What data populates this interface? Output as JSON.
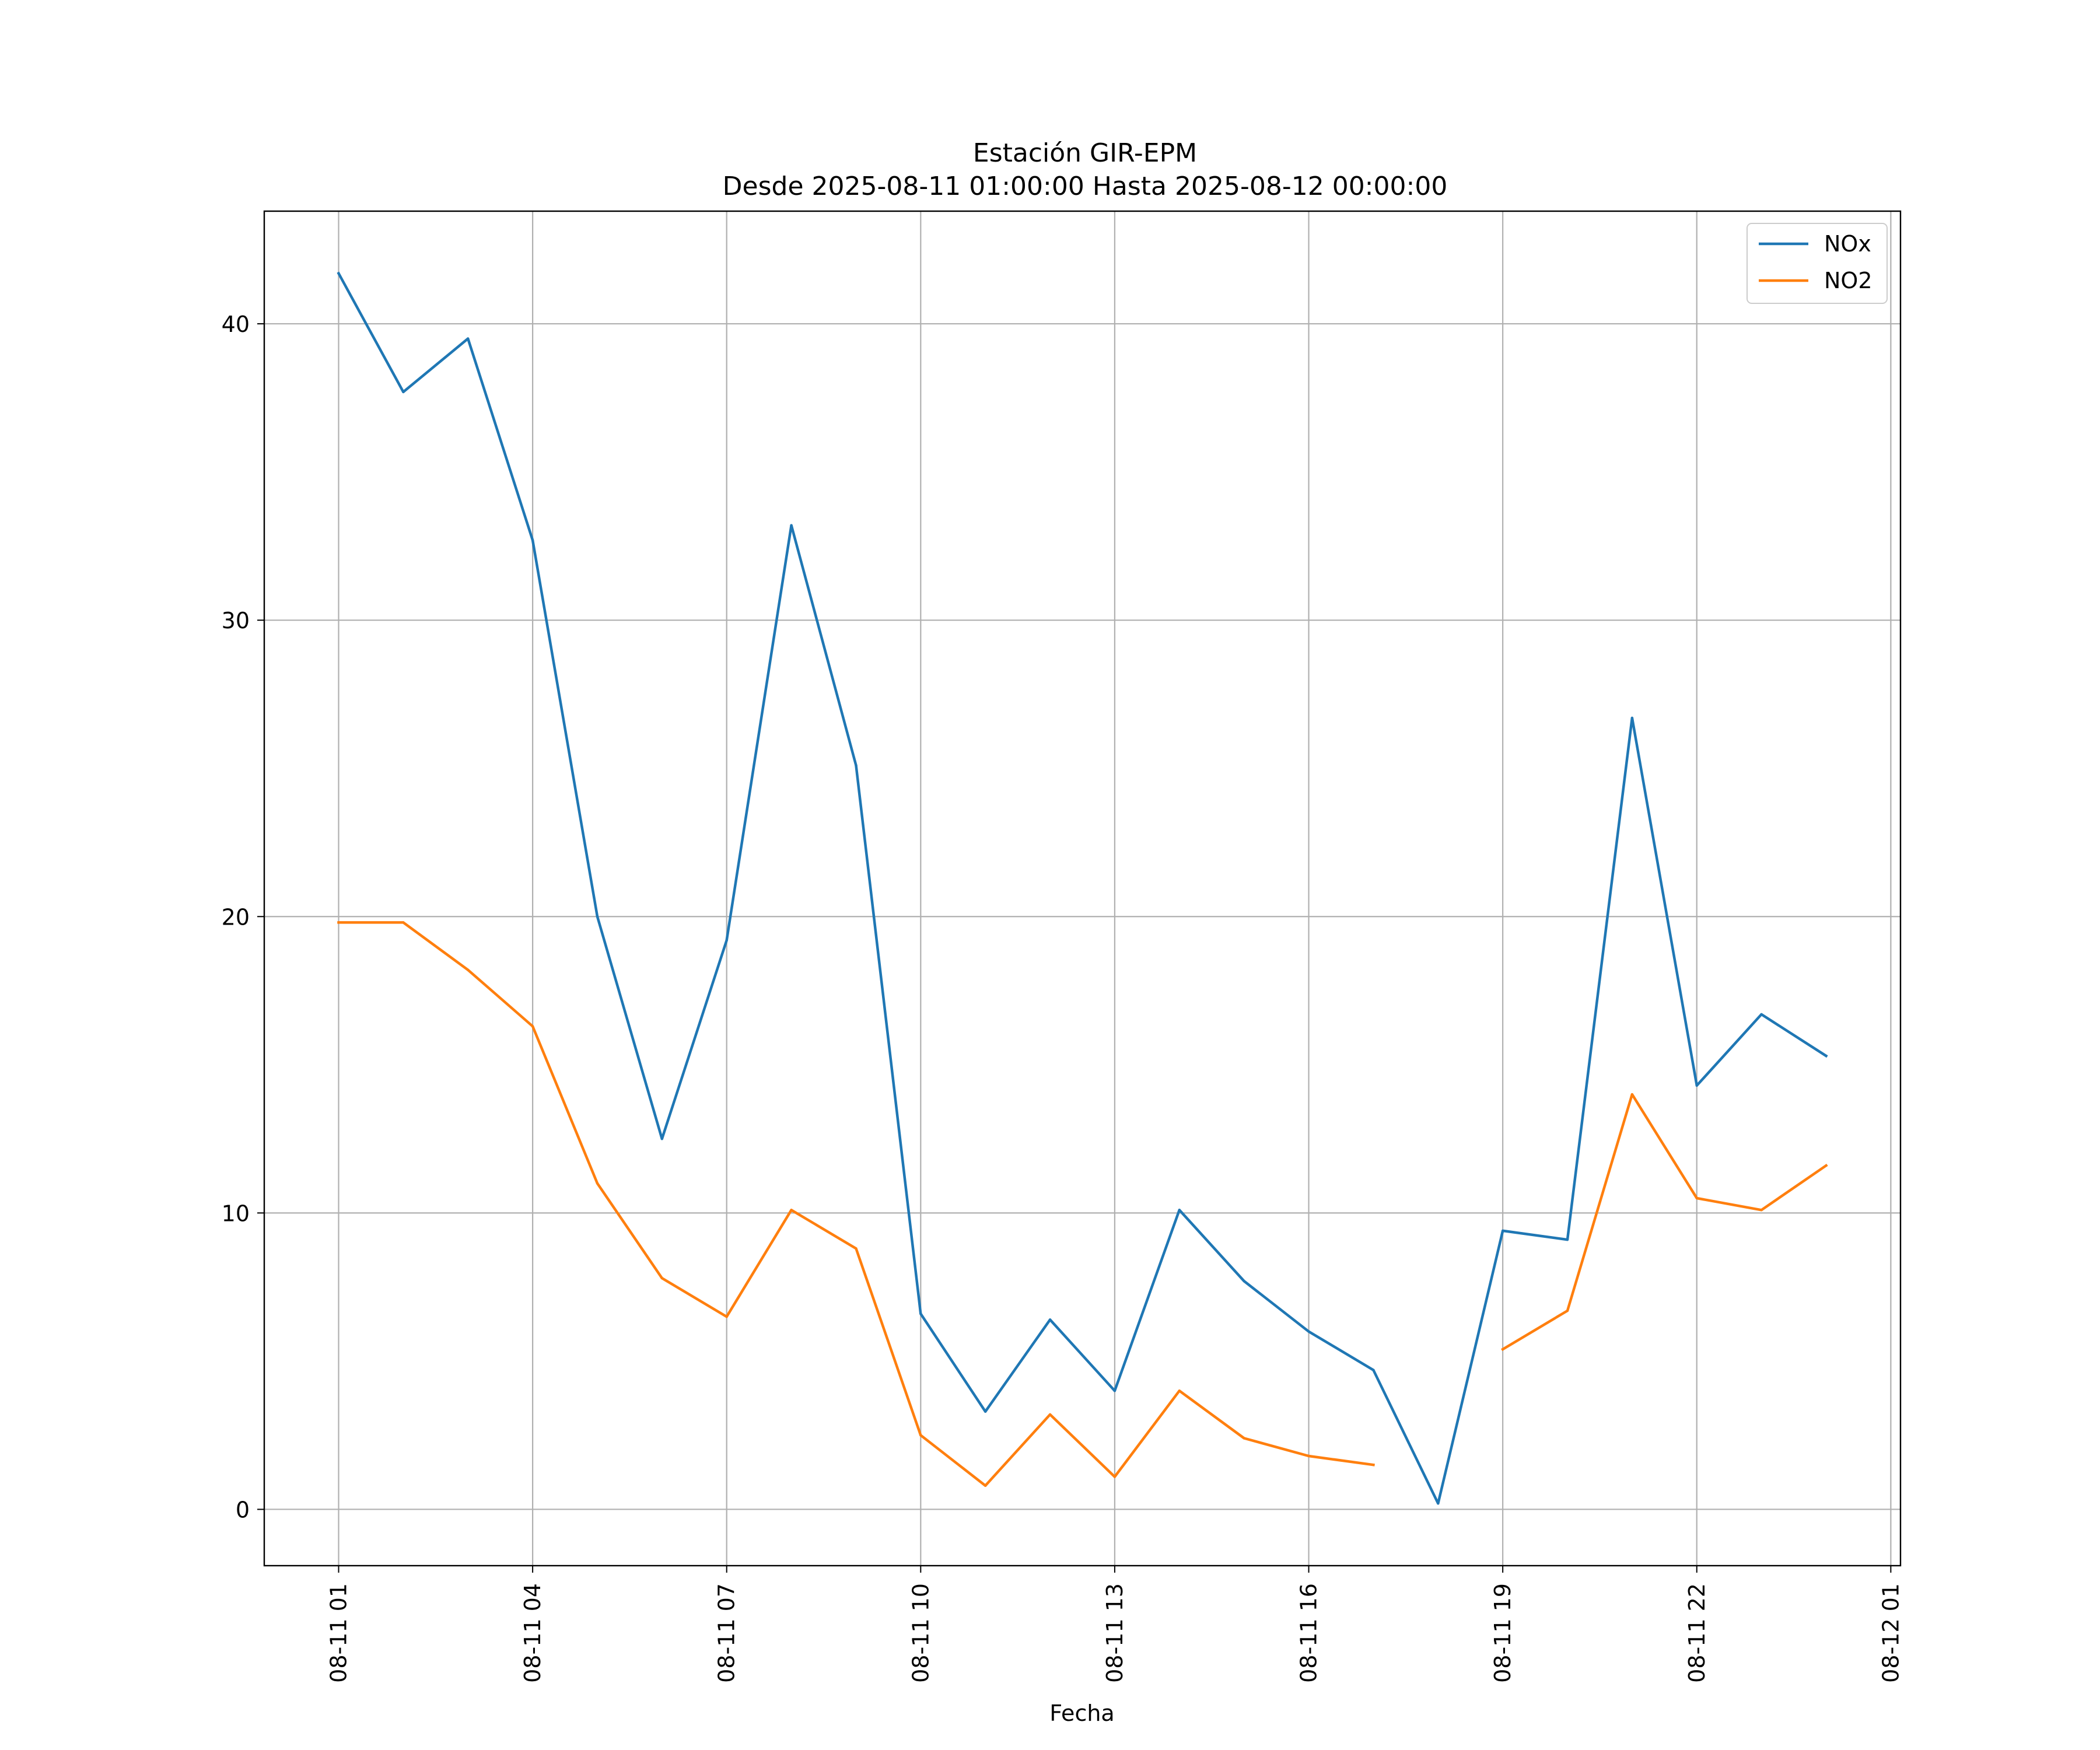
{
  "chart_data": {
    "type": "line",
    "title": "Estación GIR-EPM",
    "subtitle": "Desde 2025-08-11 01:00:00 Hasta 2025-08-12 00:00:00",
    "xlabel": "Fecha",
    "ylabel": "",
    "grid": true,
    "legend_position": "top-right",
    "x": [
      "08-11 01",
      "08-11 02",
      "08-11 03",
      "08-11 04",
      "08-11 05",
      "08-11 06",
      "08-11 07",
      "08-11 08",
      "08-11 09",
      "08-11 10",
      "08-11 11",
      "08-11 12",
      "08-11 13",
      "08-11 14",
      "08-11 15",
      "08-11 16",
      "08-11 17",
      "08-11 18",
      "08-11 19",
      "08-11 20",
      "08-11 21",
      "08-11 22",
      "08-11 23",
      "08-12 00"
    ],
    "x_hours": [
      1,
      2,
      3,
      4,
      5,
      6,
      7,
      8,
      9,
      10,
      11,
      12,
      13,
      14,
      15,
      16,
      17,
      18,
      19,
      20,
      21,
      22,
      23,
      24
    ],
    "xlim": [
      -0.15,
      25.15
    ],
    "x_ticks": [
      {
        "hour": 1,
        "label": "08-11 01"
      },
      {
        "hour": 4,
        "label": "08-11 04"
      },
      {
        "hour": 7,
        "label": "08-11 07"
      },
      {
        "hour": 10,
        "label": "08-11 10"
      },
      {
        "hour": 13,
        "label": "08-11 13"
      },
      {
        "hour": 16,
        "label": "08-11 16"
      },
      {
        "hour": 19,
        "label": "08-11 19"
      },
      {
        "hour": 22,
        "label": "08-11 22"
      },
      {
        "hour": 25,
        "label": "08-12 01"
      }
    ],
    "ylim": [
      -1.9,
      43.8
    ],
    "y_ticks": [
      {
        "value": 0,
        "label": "0"
      },
      {
        "value": 10,
        "label": "10"
      },
      {
        "value": 20,
        "label": "20"
      },
      {
        "value": 30,
        "label": "30"
      },
      {
        "value": 40,
        "label": "40"
      }
    ],
    "series": [
      {
        "name": "NOx",
        "color": "#1f77b4",
        "values": [
          41.7,
          37.7,
          39.5,
          32.7,
          20.0,
          12.5,
          19.2,
          33.2,
          25.1,
          6.6,
          3.3,
          6.4,
          4.0,
          10.1,
          7.7,
          6.0,
          4.7,
          0.2,
          9.4,
          9.1,
          26.7,
          14.3,
          16.7,
          15.3
        ]
      },
      {
        "name": "NO2",
        "color": "#ff7f0e",
        "values": [
          19.8,
          19.8,
          18.2,
          16.3,
          11.0,
          7.8,
          6.5,
          10.1,
          8.8,
          2.5,
          0.8,
          3.2,
          1.1,
          4.0,
          2.4,
          1.8,
          1.5,
          null,
          5.4,
          6.7,
          14.0,
          10.5,
          10.1,
          11.6
        ]
      }
    ]
  }
}
